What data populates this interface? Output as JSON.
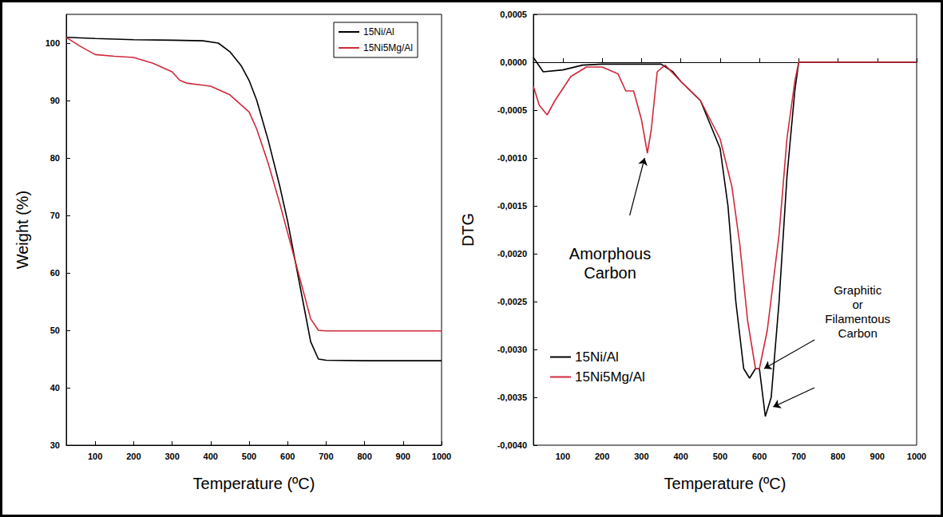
{
  "chart_data": [
    {
      "type": "line",
      "xlabel": "Temperature (ºC)",
      "ylabel": "Weight (%)",
      "xlim": [
        25,
        1000
      ],
      "xticks": [
        100,
        200,
        300,
        400,
        500,
        600,
        700,
        800,
        900,
        1000
      ],
      "ylim": [
        30,
        105
      ],
      "yticks": [
        30,
        40,
        50,
        60,
        70,
        80,
        90,
        100
      ],
      "grid": false,
      "legend": "upper right",
      "series": [
        {
          "name": "15Ni/Al",
          "color": "#000000",
          "x": [
            25,
            100,
            200,
            300,
            380,
            420,
            450,
            480,
            500,
            520,
            550,
            580,
            600,
            620,
            640,
            660,
            680,
            700,
            800,
            900,
            1000
          ],
          "values": [
            101,
            100.8,
            100.6,
            100.5,
            100.4,
            100,
            98.5,
            96,
            93.5,
            90,
            83,
            75,
            69,
            62,
            55,
            48,
            45,
            44.8,
            44.7,
            44.7,
            44.7
          ]
        },
        {
          "name": "15Ni5Mg/Al",
          "color": "#d0283a",
          "x": [
            25,
            60,
            100,
            150,
            200,
            250,
            300,
            320,
            340,
            400,
            450,
            500,
            520,
            550,
            580,
            600,
            620,
            640,
            660,
            680,
            700,
            800,
            1000
          ],
          "values": [
            101,
            99.5,
            98,
            97.7,
            97.5,
            96.5,
            95,
            93.5,
            93,
            92.5,
            91,
            88,
            85,
            79,
            72,
            67,
            62,
            57,
            52,
            50,
            49.9,
            49.9,
            49.9
          ]
        }
      ]
    },
    {
      "type": "line",
      "xlabel": "Temperature (ºC)",
      "ylabel": "DTG",
      "xlim": [
        25,
        1000
      ],
      "xticks": [
        100,
        200,
        300,
        400,
        500,
        600,
        700,
        800,
        900,
        1000
      ],
      "ylim": [
        -0.004,
        0.0005
      ],
      "yticks": [
        {
          "value": 0.0005,
          "label": "0,0005"
        },
        {
          "value": 0,
          "label": "0,0000"
        },
        {
          "value": -0.0005,
          "label": "-0,0005"
        },
        {
          "value": -0.001,
          "label": "-0,0010"
        },
        {
          "value": -0.0015,
          "label": "-0,0015"
        },
        {
          "value": -0.002,
          "label": "-0,0020"
        },
        {
          "value": -0.0025,
          "label": "-0,0025"
        },
        {
          "value": -0.003,
          "label": "-0,0030"
        },
        {
          "value": -0.0035,
          "label": "-0,0035"
        },
        {
          "value": -0.004,
          "label": "-0,0040"
        }
      ],
      "grid": false,
      "legend": "lower left",
      "series": [
        {
          "name": "15Ni/Al",
          "color": "#000000",
          "x": [
            25,
            50,
            100,
            150,
            200,
            300,
            350,
            380,
            400,
            450,
            500,
            520,
            540,
            560,
            575,
            590,
            600,
            615,
            630,
            650,
            670,
            690,
            700,
            800,
            1000
          ],
          "values": [
            5e-05,
            -0.0001,
            -8e-05,
            -3e-05,
            -2e-05,
            -2e-05,
            -2e-05,
            -0.0001,
            -0.0002,
            -0.0004,
            -0.0009,
            -0.0015,
            -0.0025,
            -0.0032,
            -0.0033,
            -0.0032,
            -0.0032,
            -0.0037,
            -0.0035,
            -0.0025,
            -0.0012,
            -0.0003,
            0,
            0,
            0
          ]
        },
        {
          "name": "15Ni5Mg/Al",
          "color": "#d0283a",
          "x": [
            25,
            40,
            60,
            80,
            120,
            160,
            200,
            240,
            260,
            280,
            300,
            315,
            325,
            340,
            360,
            400,
            450,
            500,
            530,
            550,
            570,
            590,
            600,
            620,
            650,
            670,
            690,
            700,
            800,
            1000
          ],
          "values": [
            -0.00025,
            -0.00045,
            -0.00055,
            -0.0004,
            -0.00015,
            -5e-05,
            -5e-05,
            -0.00012,
            -0.0003,
            -0.0003,
            -0.0006,
            -0.00095,
            -0.0007,
            -0.0001,
            -3e-05,
            -0.0002,
            -0.0004,
            -0.0008,
            -0.0013,
            -0.0019,
            -0.0027,
            -0.0032,
            -0.0032,
            -0.0028,
            -0.0018,
            -0.0008,
            -0.0002,
            0,
            0,
            0
          ]
        }
      ],
      "annotations": [
        {
          "text": "Amorphous Carbon",
          "x": 220,
          "y": -0.0021,
          "arrows": [
            {
              "from": [
                270,
                -0.0016
              ],
              "to": [
                308,
                -0.001
              ]
            }
          ]
        },
        {
          "text": "Graphitic or Filamentous Carbon",
          "x": 850,
          "y": -0.0026,
          "arrows": [
            {
              "from": [
                740,
                -0.0029
              ],
              "to": [
                612,
                -0.0032
              ]
            },
            {
              "from": [
                740,
                -0.0034
              ],
              "to": [
                635,
                -0.0036
              ]
            }
          ]
        }
      ]
    }
  ]
}
